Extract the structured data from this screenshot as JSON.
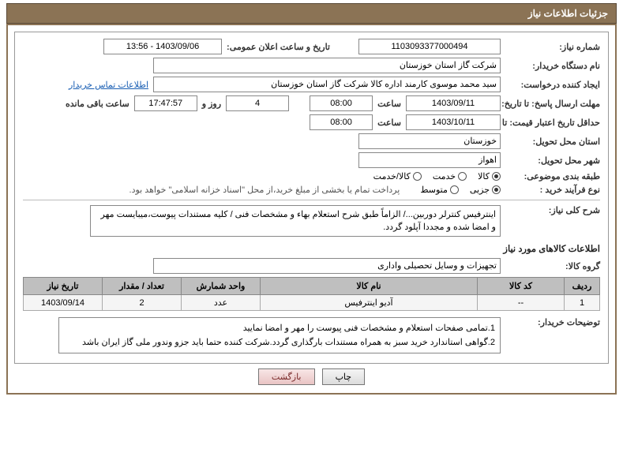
{
  "title": "جزئیات اطلاعات نیاز",
  "labels": {
    "need_no": "شماره نیاز:",
    "announce_dt": "تاریخ و ساعت اعلان عمومی:",
    "buyer_org": "نام دستگاه خریدار:",
    "requester": "ایجاد کننده درخواست:",
    "contact_link": "اطلاعات تماس خریدار",
    "deadline": "مهلت ارسال پاسخ: تا تاریخ:",
    "hour": "ساعت",
    "days_and": "روز و",
    "remaining": "ساعت باقی مانده",
    "min_validity": "حداقل تاریخ اعتبار قیمت: تا تاریخ:",
    "delivery_province": "استان محل تحویل:",
    "delivery_city": "شهر محل تحویل:",
    "classification": "طبقه بندی موضوعی:",
    "purchase_process": "نوع فرآیند خرید :",
    "need_desc": "شرح کلی نیاز:",
    "goods_info": "اطلاعات کالاهای مورد نیاز",
    "goods_group": "گروه کالا:",
    "buyer_notes_label": "توضیحات خریدار:"
  },
  "fields": {
    "need_no": "1103093377000494",
    "announce_dt": "1403/09/06 - 13:56",
    "buyer_org": "شرکت گاز استان خوزستان",
    "requester": "سید محمد موسوی کارمند اداره کالا شرکت گاز استان خوزستان",
    "deadline_date": "1403/09/11",
    "deadline_hour": "08:00",
    "days_left": "4",
    "time_left": "17:47:57",
    "min_validity_date": "1403/10/11",
    "min_validity_hour": "08:00",
    "delivery_province": "خوزستان",
    "delivery_city": "اهواز",
    "goods_group": "تجهیزات و وسایل تحصیلی واداری"
  },
  "classification": {
    "options": [
      "کالا",
      "خدمت",
      "کالا/خدمت"
    ],
    "selected": 0
  },
  "purchase_process": {
    "options": [
      "جزیی",
      "متوسط"
    ],
    "selected": 0,
    "note": "پرداخت تمام یا بخشی از مبلغ خرید،از محل \"اسناد خزانه اسلامی\" خواهد بود."
  },
  "need_desc": "اینترفیس کنترلر دوربین.../ الزاماً طبق شرح استعلام بهاء و مشخصات فنی / کلیه مستندات پیوست،میبایست مهر و امضا شده و مجددا آپلود گردد.",
  "table": {
    "headers": [
      "ردیف",
      "کد کالا",
      "نام کالا",
      "واحد شمارش",
      "تعداد / مقدار",
      "تاریخ نیاز"
    ],
    "rows": [
      {
        "seq": "1",
        "code": "--",
        "name": "آدیو اینترفیس",
        "unit": "عدد",
        "qty": "2",
        "date": "1403/09/14"
      }
    ]
  },
  "buyer_notes": "1.تمامی صفحات استعلام و مشخصات فنی پیوست را مهر و امضا نمایید\n2.گواهی استاندارد خرید سبز به همراه مستندات بارگذاری گردد.شرکت کننده حتما باید جزو وندور ملی گاز ایران باشد",
  "buttons": {
    "print": "چاپ",
    "back": "بازگشت"
  },
  "colors": {
    "brand": "#8b7355",
    "header_bg": "#bfbfbf",
    "link": "#1a5fb4"
  }
}
